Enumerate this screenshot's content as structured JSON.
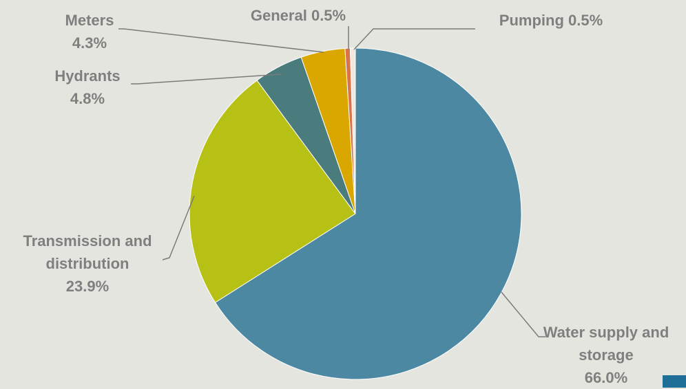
{
  "chart_data": {
    "type": "pie",
    "categories": [
      "Water supply and storage",
      "Transmission and distribution",
      "Hydrants",
      "Meters",
      "General",
      "Pumping"
    ],
    "values": [
      66.0,
      23.9,
      4.8,
      4.3,
      0.5,
      0.5
    ],
    "value_labels": [
      "66.0%",
      "23.9%",
      "4.8%",
      "4.3%",
      "0.5%",
      "0.5%"
    ],
    "colors": [
      "#4d88a2",
      "#b7c014",
      "#4a7b7d",
      "#d9a700",
      "#d8734a",
      "#f0e8dc"
    ]
  }
}
